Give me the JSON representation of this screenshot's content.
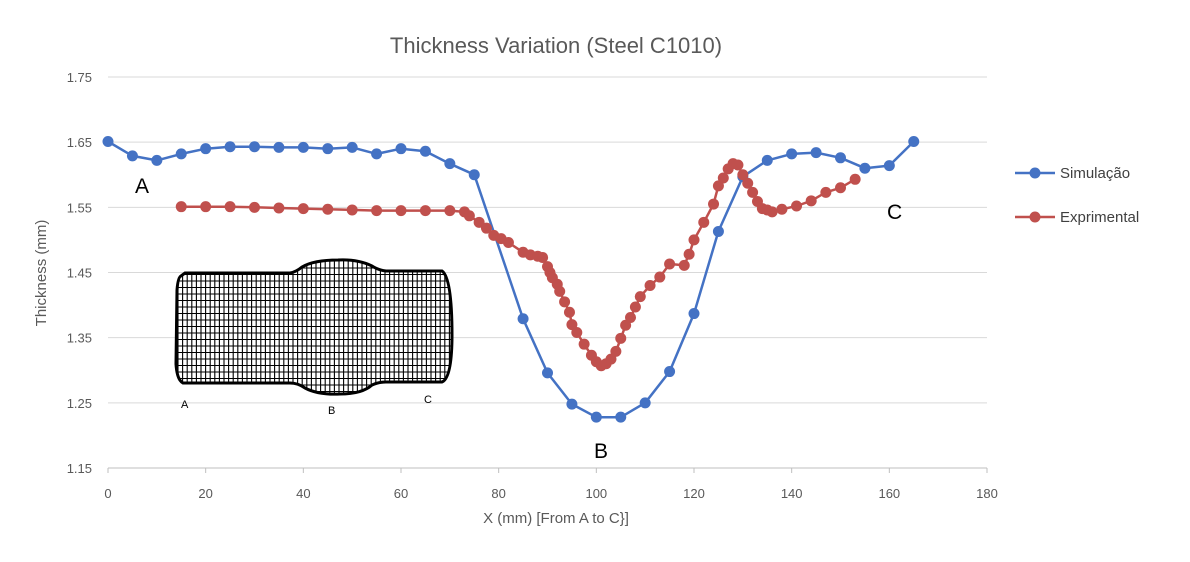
{
  "chart_data": {
    "type": "line",
    "title": "Thickness Variation (Steel C1010)",
    "xlabel": "X (mm) [From A to C}]",
    "ylabel": "Thickness (mm)",
    "xlim": [
      0,
      180
    ],
    "ylim": [
      1.15,
      1.75
    ],
    "x_ticks": [
      "0",
      "20",
      "40",
      "60",
      "80",
      "100",
      "120",
      "140",
      "160",
      "180"
    ],
    "y_ticks": [
      "1.15",
      "1.25",
      "1.35",
      "1.45",
      "1.55",
      "1.65",
      "1.75"
    ],
    "grid": "horizontal",
    "legend_position": "right",
    "series": [
      {
        "name": "Simulação",
        "color": "#4472c4",
        "points": [
          [
            0,
            1.651
          ],
          [
            5,
            1.629
          ],
          [
            10,
            1.622
          ],
          [
            15,
            1.632
          ],
          [
            20,
            1.64
          ],
          [
            25,
            1.643
          ],
          [
            30,
            1.643
          ],
          [
            35,
            1.642
          ],
          [
            40,
            1.642
          ],
          [
            45,
            1.64
          ],
          [
            50,
            1.642
          ],
          [
            55,
            1.632
          ],
          [
            60,
            1.64
          ],
          [
            65,
            1.636
          ],
          [
            70,
            1.617
          ],
          [
            75,
            1.6
          ],
          [
            85,
            1.379
          ],
          [
            90,
            1.296
          ],
          [
            95,
            1.248
          ],
          [
            100,
            1.228
          ],
          [
            105,
            1.228
          ],
          [
            110,
            1.25
          ],
          [
            115,
            1.298
          ],
          [
            120,
            1.387
          ],
          [
            125,
            1.513
          ],
          [
            130,
            1.597
          ],
          [
            135,
            1.622
          ],
          [
            140,
            1.632
          ],
          [
            145,
            1.634
          ],
          [
            150,
            1.626
          ],
          [
            155,
            1.61
          ],
          [
            160,
            1.614
          ],
          [
            165,
            1.651
          ]
        ]
      },
      {
        "name": "Exprimental",
        "color": "#c0504d",
        "points": [
          [
            15,
            1.551
          ],
          [
            20,
            1.551
          ],
          [
            25,
            1.551
          ],
          [
            30,
            1.55
          ],
          [
            35,
            1.549
          ],
          [
            40,
            1.548
          ],
          [
            45,
            1.547
          ],
          [
            50,
            1.546
          ],
          [
            55,
            1.545
          ],
          [
            60,
            1.545
          ],
          [
            65,
            1.545
          ],
          [
            70,
            1.545
          ],
          [
            73,
            1.543
          ],
          [
            74,
            1.537
          ],
          [
            76,
            1.527
          ],
          [
            77.5,
            1.518
          ],
          [
            79,
            1.507
          ],
          [
            80.5,
            1.502
          ],
          [
            82,
            1.496
          ],
          [
            85,
            1.481
          ],
          [
            86.5,
            1.477
          ],
          [
            88,
            1.475
          ],
          [
            89,
            1.473
          ],
          [
            90,
            1.459
          ],
          [
            90.5,
            1.45
          ],
          [
            91,
            1.442
          ],
          [
            92,
            1.432
          ],
          [
            92.5,
            1.421
          ],
          [
            93.5,
            1.405
          ],
          [
            94.5,
            1.389
          ],
          [
            95,
            1.37
          ],
          [
            96,
            1.358
          ],
          [
            97.5,
            1.34
          ],
          [
            99,
            1.323
          ],
          [
            100,
            1.313
          ],
          [
            101,
            1.307
          ],
          [
            102,
            1.31
          ],
          [
            103,
            1.317
          ],
          [
            104,
            1.329
          ],
          [
            105,
            1.349
          ],
          [
            106,
            1.369
          ],
          [
            107,
            1.381
          ],
          [
            108,
            1.397
          ],
          [
            109,
            1.413
          ],
          [
            111,
            1.43
          ],
          [
            113,
            1.443
          ],
          [
            115,
            1.463
          ],
          [
            118,
            1.461
          ],
          [
            119,
            1.478
          ],
          [
            120,
            1.5
          ],
          [
            122,
            1.527
          ],
          [
            124,
            1.555
          ],
          [
            125,
            1.583
          ],
          [
            126,
            1.595
          ],
          [
            127,
            1.609
          ],
          [
            128,
            1.617
          ],
          [
            129,
            1.615
          ],
          [
            130,
            1.6
          ],
          [
            131,
            1.587
          ],
          [
            132,
            1.573
          ],
          [
            133,
            1.559
          ],
          [
            134,
            1.548
          ],
          [
            135,
            1.546
          ],
          [
            136,
            1.543
          ],
          [
            138,
            1.547
          ],
          [
            141,
            1.552
          ],
          [
            144,
            1.56
          ],
          [
            147,
            1.573
          ],
          [
            150,
            1.58
          ],
          [
            153,
            1.593
          ]
        ]
      }
    ],
    "annotations": [
      "A",
      "B",
      "C"
    ]
  },
  "inset": {
    "labels": [
      "A",
      "B",
      "C"
    ]
  }
}
